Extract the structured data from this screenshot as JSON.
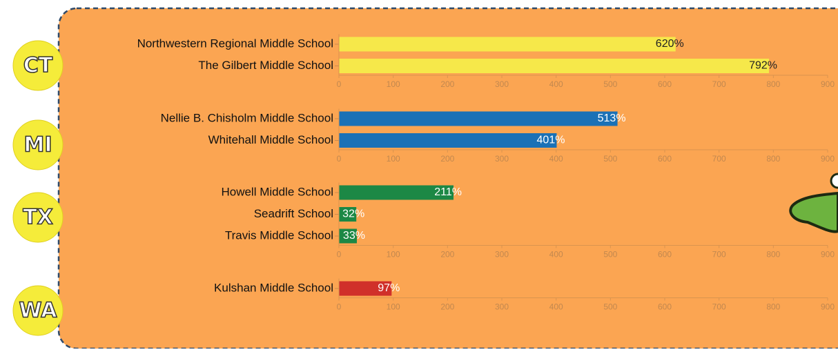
{
  "chart_data": [
    {
      "type": "hbar",
      "title": "CT",
      "categories": [
        "Northwestern Regional Middle School",
        "The Gilbert Middle School"
      ],
      "values": [
        620,
        792
      ],
      "value_labels": [
        "620%",
        "792%"
      ],
      "color": "#f6e84a",
      "label_color": "#222222",
      "xlim": [
        0,
        900
      ],
      "xticks": [
        0,
        100,
        200,
        300,
        400,
        500,
        600,
        700,
        800,
        900
      ]
    },
    {
      "type": "hbar",
      "title": "MI",
      "categories": [
        "Nellie B. Chisholm Middle School",
        "Whitehall Middle School"
      ],
      "values": [
        513,
        401
      ],
      "value_labels": [
        "513%",
        "401%"
      ],
      "color": "#1b71b6",
      "label_color": "#ffffff",
      "xlim": [
        0,
        900
      ],
      "xticks": [
        0,
        100,
        200,
        300,
        400,
        500,
        600,
        700,
        800,
        900
      ]
    },
    {
      "type": "hbar",
      "title": "TX",
      "categories": [
        "Howell Middle School",
        "Seadrift School",
        "Travis Middle School"
      ],
      "values": [
        211,
        32,
        33
      ],
      "value_labels": [
        "211%",
        "32%",
        "33%"
      ],
      "color": "#1c8845",
      "label_color": "#ffffff",
      "xlim": [
        0,
        900
      ],
      "xticks": [
        0,
        100,
        200,
        300,
        400,
        500,
        600,
        700,
        800,
        900
      ]
    },
    {
      "type": "hbar",
      "title": "WA",
      "categories": [
        "Kulshan Middle School"
      ],
      "values": [
        97
      ],
      "value_labels": [
        "97%"
      ],
      "color": "#d0302a",
      "label_color": "#ffffff",
      "xlim": [
        0,
        900
      ],
      "xticks": [
        0,
        100,
        200,
        300,
        400,
        500,
        600,
        700,
        800,
        900
      ]
    }
  ]
}
